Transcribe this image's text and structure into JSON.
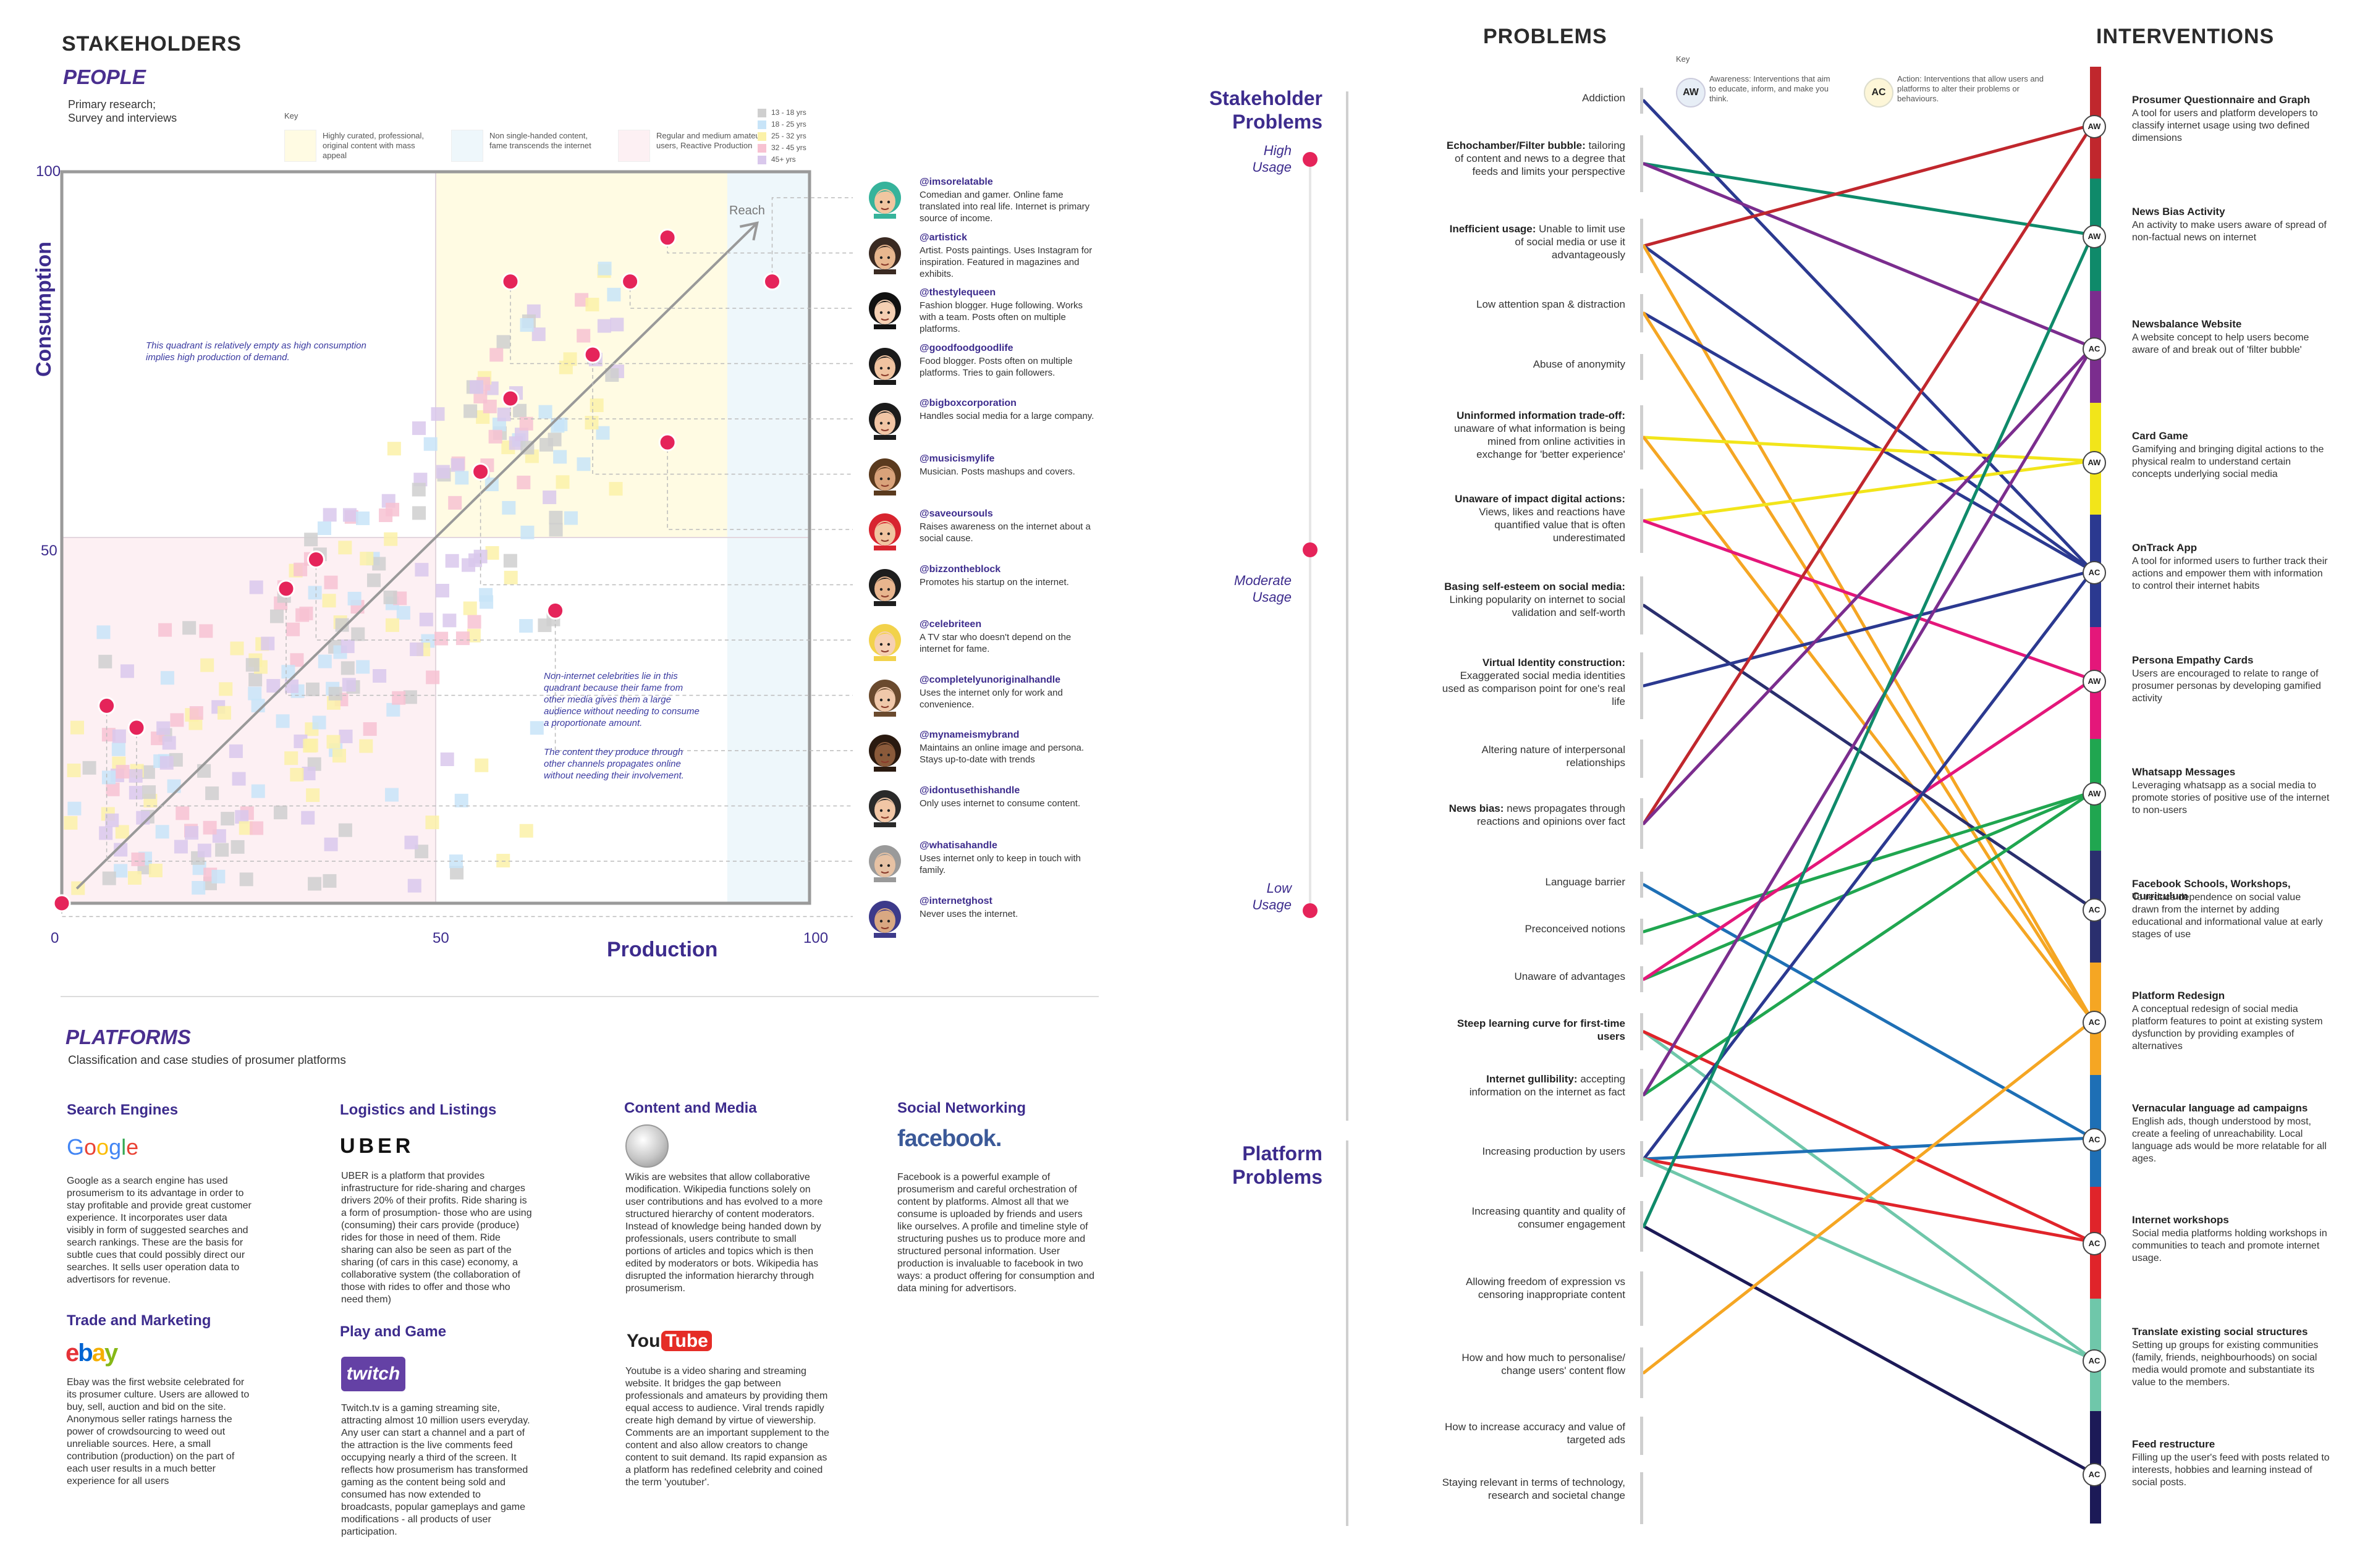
{
  "stakeholders": {
    "title": "STAKEHOLDERS",
    "people_label": "PEOPLE",
    "people_sub": "Primary research;\nSurvey and interviews",
    "key_label": "Key",
    "key_items": [
      {
        "text": "Highly curated, professional, original content with mass appeal",
        "color": "#fffbe3"
      },
      {
        "text": "Non single-handed content, fame transcends the internet",
        "color": "#eef7fb"
      },
      {
        "text": "Regular and medium amateur users, Reactive Production",
        "color": "#fdf0f3"
      }
    ],
    "age_legend": [
      {
        "label": "13 - 18 yrs",
        "color": "#cfcfcf"
      },
      {
        "label": "18 - 25 yrs",
        "color": "#c8e4f8"
      },
      {
        "label": "25 - 32 yrs",
        "color": "#fbf1a8"
      },
      {
        "label": "32 - 45 yrs",
        "color": "#f7c2d2"
      },
      {
        "label": "45+ yrs",
        "color": "#d9c8ec"
      }
    ]
  },
  "scatter": {
    "ylabel": "Consumption",
    "xlabel": "Production",
    "y_ticks": [
      "100",
      "50"
    ],
    "x_ticks": [
      "0",
      "50",
      "100"
    ],
    "reach_label": "Reach",
    "note_top": "This quadrant is relatively empty as high consumption implies high production of demand.",
    "note_bottom_1": "Non-internet celebrities lie in this quadrant because their fame from other media gives them a large audience without needing to consume a proportionate amount.",
    "note_bottom_2": "The content they produce through other channels propagates online without needing their involvement."
  },
  "chart_data": {
    "type": "scatter",
    "xlabel": "Production",
    "ylabel": "Consumption",
    "xlim": [
      0,
      100
    ],
    "ylim": [
      0,
      100
    ],
    "personas": [
      {
        "x": 95,
        "y": 85
      },
      {
        "x": 81,
        "y": 91
      },
      {
        "x": 76,
        "y": 85
      },
      {
        "x": 60,
        "y": 85
      },
      {
        "x": 60,
        "y": 69
      },
      {
        "x": 71,
        "y": 75
      },
      {
        "x": 81,
        "y": 63
      },
      {
        "x": 56,
        "y": 59
      },
      {
        "x": 34,
        "y": 47
      },
      {
        "x": 30,
        "y": 43
      },
      {
        "x": 66,
        "y": 40
      },
      {
        "x": 10,
        "y": 24
      },
      {
        "x": 6,
        "y": 27
      },
      {
        "x": 0,
        "y": 0
      }
    ]
  },
  "personas": [
    {
      "handle": "@imsorelatable",
      "desc": "Comedian and gamer. Online fame translated into real life. Internet is primary source of income.",
      "skin": "#f1c6a0",
      "hair": "#36b39b"
    },
    {
      "handle": "@artistick",
      "desc": "Artist. Posts paintings. Uses Instagram for inspiration. Featured in magazines and exhibits.",
      "skin": "#e8b78f",
      "hair": "#3a2a22"
    },
    {
      "handle": "@thestylequeen",
      "desc": "Fashion blogger. Huge following. Works with a team. Posts often on multiple platforms.",
      "skin": "#f4cfb3",
      "hair": "#111111"
    },
    {
      "handle": "@goodfoodgoodlife",
      "desc": "Food blogger. Posts often on multiple platforms. Tries to gain followers.",
      "skin": "#f0c3a0",
      "hair": "#1a1a1a"
    },
    {
      "handle": "@bigboxcorporation",
      "desc": "Handles social media for a large company.",
      "skin": "#f1c5a5",
      "hair": "#1b1b1b"
    },
    {
      "handle": "@musicismylife",
      "desc": "Musician. Posts mashups and covers.",
      "skin": "#d9a27a",
      "hair": "#5a3a1e"
    },
    {
      "handle": "@saveoursouls",
      "desc": "Raises awareness on the internet about a social cause.",
      "skin": "#f0c4a0",
      "hair": "#d8242f"
    },
    {
      "handle": "@bizzontheblock",
      "desc": "Promotes his startup on the internet.",
      "skin": "#e8b58e",
      "hair": "#1e1e1e"
    },
    {
      "handle": "@celebriteen",
      "desc": "A TV star who doesn't depend on the internet for fame.",
      "skin": "#f6d0b3",
      "hair": "#f2d24b"
    },
    {
      "handle": "@completelyunoriginalhandle",
      "desc": "Uses the internet only for work and convenience.",
      "skin": "#f0c8aa",
      "hair": "#6a4a2e"
    },
    {
      "handle": "@mynameismybrand",
      "desc": "Maintains an online image and persona. Stays up-to-date with trends",
      "skin": "#8a5a3a",
      "hair": "#2a1a10"
    },
    {
      "handle": "@idontusethishandle",
      "desc": "Only uses internet to consume content.",
      "skin": "#f1c6a5",
      "hair": "#2a2a2a"
    },
    {
      "handle": "@whatisahandle",
      "desc": "Uses internet only to keep in touch with family.",
      "skin": "#e7c2a4",
      "hair": "#9a9a9a"
    },
    {
      "handle": "@internetghost",
      "desc": "Never uses the internet.",
      "skin": "#d9a882",
      "hair": "#3d3a8a"
    }
  ],
  "platforms": {
    "title": "PLATFORMS",
    "subtitle": "Classification and case studies of prosumer platforms",
    "search": {
      "head": "Search Engines",
      "logo": "Google",
      "text": "Google as a search engine has used prosumerism to its advantage in order to stay profitable and provide great customer experience. It incorporates user data visibly in form of suggested searches and search rankings. These are the basis for subtle cues that could possibly direct our searches. It sells user operation data to advertisors for revenue."
    },
    "trade": {
      "head": "Trade and Marketing",
      "logo": "ebay",
      "text": "Ebay was the first website celebrated for its prosumer culture. Users are allowed to buy, sell, auction and bid on the site. Anonymous seller ratings harness the power of  crowdsourcing to weed out unreliable sources. Here, a small contribution (production) on the part of each user results in a much better experience for all users"
    },
    "logistics": {
      "head": "Logistics and Listings",
      "logo": "UBER",
      "text": "UBER is a platform that provides infrastructure for ride-sharing and charges drivers 20% of their profits. Ride sharing is a form of prosumption- those who are using (consuming) their cars provide (produce) rides for those in need of them. Ride sharing can also be seen as part of the sharing (of cars in this case) economy, a collaborative system (the collaboration of those with rides to offer and those who need them)"
    },
    "play": {
      "head": "Play and Game",
      "logo": "twitch",
      "text": "Twitch.tv is a gaming streaming site, attracting almost 10 million users everyday. Any user can start a channel and a part of the attraction is the live comments feed occupying nearly a third of the screen. It reflects how prosumerism has transformed gaming as the content being sold and consumed has now extended to broadcasts, popular gameplays and game modifications - all products of user participation."
    },
    "content": {
      "head": "Content and Media",
      "text": "Wikis are websites that allow collaborative modification. Wikipedia functions solely on user contributions and has evolved to a more structured hierarchy of content moderators. Instead of knowledge being handed down by professionals, users contribute to small portions of articles and topics which is then edited by moderators or bots. Wikipedia has disrupted the information hierarchy through prosumerism.",
      "yt_logo_you": "You",
      "yt_logo_tube": "Tube",
      "yt_text": "Youtube is a video sharing and streaming website. It bridges the gap between professionals and amateurs by providing them equal access to audience. Viral trends rapidly create high demand by virtue of viewership. Comments are an important supplement to the content and also allow creators to change content to suit demand. Its rapid expansion as a platform has redefined celebrity and coined the term 'youtuber'."
    },
    "social": {
      "head": "Social Networking",
      "logo": "facebook.",
      "text": "Facebook is a powerful example of prosumerism and careful orchestration of content by platforms. Almost all that we consume is uploaded by friends and users like ourselves. A profile and timeline style of structuring pushes us to produce more and structured personal information. User production is invaluable to facebook in two ways: a product offering for consumption and data mining for advertisors."
    }
  },
  "right": {
    "problems_title": "PROBLEMS",
    "interventions_title": "INTERVENTIONS",
    "stakeholder_problems": "Stakeholder\nProblems",
    "platform_problems": "Platform\nProblems",
    "high": "High\nUsage",
    "moderate": "Moderate\nUsage",
    "low": "Low\nUsage",
    "key_label": "Key",
    "aw_badge": "AW",
    "ac_badge": "AC",
    "aw_text": "Awareness: Interventions that aim to educate, inform, and make you think.",
    "ac_text": "Action: Interventions that allow users and platforms to alter their problems or behaviours."
  },
  "problems": [
    {
      "b": "",
      "t": "Addiction"
    },
    {
      "b": "Echochamber/Filter bubble:",
      "t": " tailoring of content and news to a degree that feeds and limits your perspective"
    },
    {
      "b": "Inefficient usage:",
      "t": " Unable to limit use of social media or use it advantageously"
    },
    {
      "b": "",
      "t": "Low attention span & distraction"
    },
    {
      "b": "",
      "t": "Abuse of anonymity"
    },
    {
      "b": "Uninformed information trade-off:",
      "t": " unaware of what information is being mined from online activities in exchange for 'better experience'"
    },
    {
      "b": "Unaware of impact digital actions:",
      "t": " Views, likes and reactions have quantified value that is often underestimated"
    },
    {
      "b": "Basing self-esteem on social media:",
      "t": " Linking popularity on internet to social validation and self-worth"
    },
    {
      "b": "Virtual Identity construction:",
      "t": " Exaggerated social media identities used as comparison point for one's real life"
    },
    {
      "b": "",
      "t": "Altering nature of interpersonal relationships"
    },
    {
      "b": "News bias:",
      "t": " news propagates through reactions and opinions over fact"
    },
    {
      "b": "",
      "t": "Language barrier"
    },
    {
      "b": "",
      "t": "Preconceived notions"
    },
    {
      "b": "",
      "t": "Unaware of advantages"
    },
    {
      "b": "Steep learning curve for first-time users",
      "t": ""
    },
    {
      "b": "Internet gullibility:",
      "t": " accepting information on the internet as fact"
    },
    {
      "b": "",
      "t": "Increasing production by users"
    },
    {
      "b": "",
      "t": "Increasing quantity and quality of consumer engagement"
    },
    {
      "b": "",
      "t": "Allowing freedom of expression vs censoring inappropriate content"
    },
    {
      "b": "",
      "t": "How and how much to personalise/ change users' content flow"
    },
    {
      "b": "",
      "t": "How to increase accuracy and value of targeted ads"
    },
    {
      "b": "",
      "t": "Staying relevant in terms of technology, research and societal change"
    }
  ],
  "interventions": [
    {
      "title": "Prosumer Questionnaire and Graph",
      "text": "A tool for users and platform developers to classify internet usage using two defined dimensions",
      "type": "AW",
      "color": "#c0272d"
    },
    {
      "title": "News Bias Activity",
      "text": "An activity to make users aware of spread of non-factual news on internet",
      "type": "AW",
      "color": "#0f8a6a"
    },
    {
      "title": "Newsbalance Website",
      "text": "A website concept to help users become aware of and break out of 'filter bubble'",
      "type": "AC",
      "color": "#7b2d8e"
    },
    {
      "title": "Card Game",
      "text": "Gamifying and bringing digital actions to the physical realm to understand certain concepts underlying social media",
      "type": "AW",
      "color": "#f2e51a"
    },
    {
      "title": "OnTrack App",
      "text": "A tool for informed users to further track their actions and empower them with information to control their internet habits",
      "type": "AC",
      "color": "#2b3990"
    },
    {
      "title": "Persona Empathy Cards",
      "text": "Users are encouraged to relate to range of prosumer personas by developing gamified activity",
      "type": "AW",
      "color": "#e4177a"
    },
    {
      "title": "Whatsapp Messages",
      "text": "Leveraging whatsapp as a social media to promote stories of positive use of the internet to non-users",
      "type": "AW",
      "color": "#20a650"
    },
    {
      "title": "Facebook Schools, Workshops, Curriculum",
      "text": "To reduce dependence on social value drawn from the internet by adding educational and informational value at early stages of use",
      "type": "AC",
      "color": "#2a2f6e"
    },
    {
      "title": "Platform Redesign",
      "text": "A conceptual redesign of social media platform features to point at existing system dysfunction by providing examples of alternatives",
      "type": "AC",
      "color": "#f5a623"
    },
    {
      "title": "Vernacular language ad campaigns",
      "text": "English ads, though understood by most, create a feeling of unreachability. Local language ads would be more relatable for all ages.",
      "type": "AC",
      "color": "#1e6fb5"
    },
    {
      "title": "Internet workshops",
      "text": "Social media platforms holding workshops in communities to teach and promote internet usage.",
      "type": "AC",
      "color": "#e0242a"
    },
    {
      "title": "Translate existing social structures",
      "text": "Setting up groups for existing communities (family, friends, neighbourhoods) on social media would promote and substantiate its value to the members.",
      "type": "AC",
      "color": "#6fc7aa"
    },
    {
      "title": "Feed restructure",
      "text": "Filling up the user's feed with posts related to interests, hobbies and learning instead of social posts.",
      "type": "AC",
      "color": "#1c1a57"
    }
  ]
}
